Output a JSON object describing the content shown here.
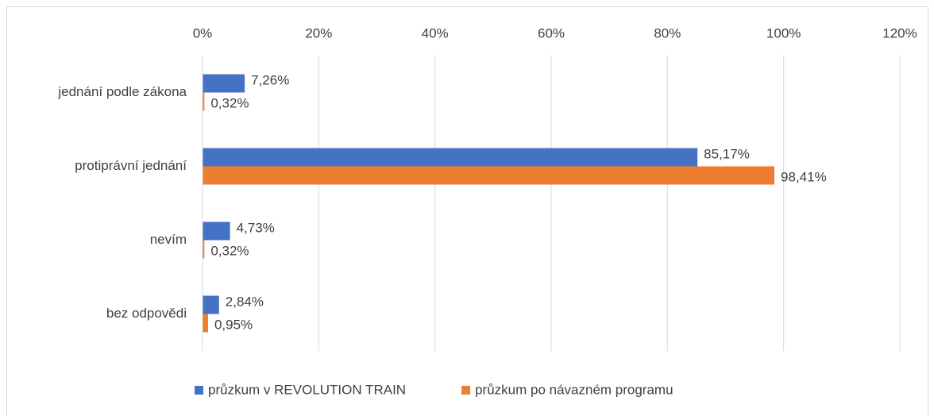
{
  "chart_data": {
    "type": "hbar",
    "categories": [
      "jednání podle zákona",
      "protiprávní jednání",
      "nevím",
      "bez odpovědi"
    ],
    "series": [
      {
        "name": "průzkum v REVOLUTION TRAIN",
        "color": "#4472c4",
        "values": [
          7.26,
          85.17,
          4.73,
          2.84
        ],
        "value_labels": [
          "7,26%",
          "85,17%",
          "4,73%",
          "2,84%"
        ]
      },
      {
        "name": "průzkum po návazném programu",
        "color": "#ed7d31",
        "values": [
          0.32,
          98.41,
          0.32,
          0.95
        ],
        "value_labels": [
          "0,32%",
          "98,41%",
          "0,32%",
          "0,95%"
        ]
      }
    ],
    "xlim": [
      0,
      120
    ],
    "xticks": [
      {
        "value": 0,
        "label": "0%"
      },
      {
        "value": 20,
        "label": "20%"
      },
      {
        "value": 40,
        "label": "40%"
      },
      {
        "value": 60,
        "label": "60%"
      },
      {
        "value": 80,
        "label": "80%"
      },
      {
        "value": 100,
        "label": "100%"
      },
      {
        "value": 120,
        "label": "120%"
      }
    ],
    "grid": true,
    "legend": "bottom"
  }
}
